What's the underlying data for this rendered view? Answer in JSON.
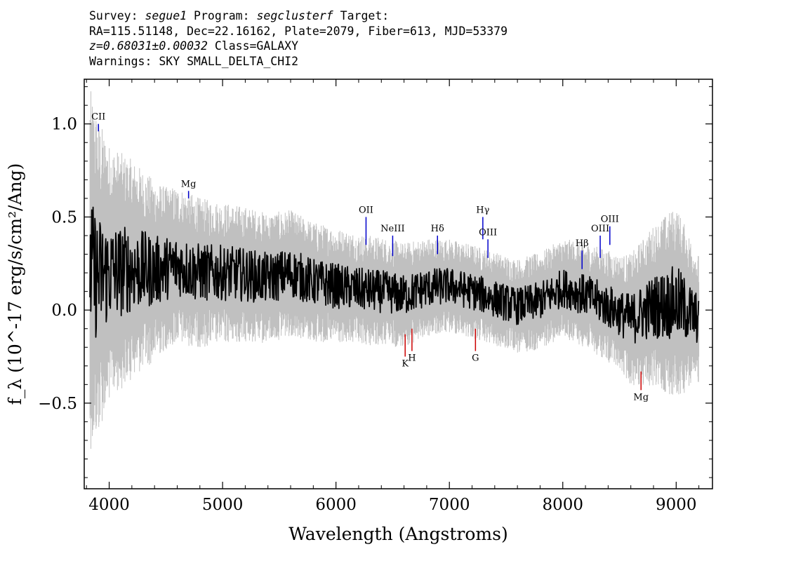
{
  "header": {
    "survey_label": "Survey:",
    "survey": "segue1",
    "program_label": "Program:",
    "program": "segclusterf",
    "target_label": "Target:",
    "line2": "RA=115.51148, Dec=22.16162, Plate=2079, Fiber=613, MJD=53379",
    "redshift": "z=0.68031±0.00032",
    "class": "Class=GALAXY",
    "warnings": "Warnings: SKY SMALL_DELTA_CHI2"
  },
  "chart_data": {
    "type": "line",
    "xlabel": "Wavelength (Angstroms)",
    "ylabel": "f_λ (10^-17 erg/s/cm²/Ang)",
    "xlim": [
      3780,
      9320
    ],
    "ylim": [
      -0.96,
      1.24
    ],
    "x_ticks": [
      4000,
      5000,
      6000,
      7000,
      8000,
      9000
    ],
    "y_ticks": [
      -0.5,
      0.0,
      0.5,
      1.0
    ],
    "y_tick_labels": [
      "−0.5",
      "0.0",
      "0.5",
      "1.0"
    ],
    "series": [
      {
        "role": "flux",
        "color": "#000000",
        "x": [
          3830,
          3900,
          4000,
          4200,
          4400,
          4600,
          4800,
          5000,
          5200,
          5400,
          5600,
          5800,
          6000,
          6200,
          6400,
          6600,
          6800,
          7000,
          7200,
          7400,
          7600,
          7800,
          8000,
          8200,
          8400,
          8600,
          8800,
          9000,
          9200
        ],
        "y": [
          0.22,
          0.18,
          0.2,
          0.22,
          0.21,
          0.24,
          0.2,
          0.2,
          0.19,
          0.17,
          0.2,
          0.15,
          0.13,
          0.11,
          0.1,
          0.08,
          0.12,
          0.13,
          0.1,
          0.06,
          0.02,
          0.05,
          0.12,
          0.08,
          0.02,
          -0.05,
          0.02,
          0.04,
          -0.05
        ]
      },
      {
        "role": "noise",
        "color": "#c0c0c0",
        "x": [
          3830,
          4000,
          4500,
          5000,
          5500,
          6000,
          6500,
          7000,
          7500,
          8000,
          8500,
          9000,
          9200
        ],
        "halfwidth": [
          0.85,
          0.6,
          0.38,
          0.33,
          0.3,
          0.27,
          0.25,
          0.22,
          0.22,
          0.23,
          0.27,
          0.45,
          0.3
        ]
      }
    ],
    "emission_lines": [
      {
        "label": "CII",
        "x": 3905,
        "y_top": 1.0,
        "y_bottom": 0.96
      },
      {
        "label": "Mg",
        "x": 4700,
        "y_top": 0.64,
        "y_bottom": 0.6
      },
      {
        "label": "OII",
        "x": 6265,
        "y_top": 0.5,
        "y_bottom": 0.35
      },
      {
        "label": "NeIII",
        "x": 6500,
        "y_top": 0.4,
        "y_bottom": 0.29
      },
      {
        "label": "Hδ",
        "x": 6895,
        "y_top": 0.4,
        "y_bottom": 0.3
      },
      {
        "label": "Hγ",
        "x": 7295,
        "y_top": 0.5,
        "y_bottom": 0.38
      },
      {
        "label": "OIII",
        "x": 7340,
        "y_top": 0.38,
        "y_bottom": 0.28
      },
      {
        "label": "Hβ",
        "x": 8170,
        "y_top": 0.32,
        "y_bottom": 0.22
      },
      {
        "label": "OIII",
        "x": 8330,
        "y_top": 0.4,
        "y_bottom": 0.28
      },
      {
        "label": "OIII",
        "x": 8415,
        "y_top": 0.45,
        "y_bottom": 0.35
      }
    ],
    "absorption_lines": [
      {
        "label": "K",
        "x": 6610,
        "y_top": -0.13,
        "y_bottom": -0.25
      },
      {
        "label": "H",
        "x": 6670,
        "y_top": -0.1,
        "y_bottom": -0.22
      },
      {
        "label": "G",
        "x": 7230,
        "y_top": -0.1,
        "y_bottom": -0.22
      },
      {
        "label": "Mg",
        "x": 8690,
        "y_top": -0.33,
        "y_bottom": -0.43
      }
    ],
    "line_colors": {
      "emission": "#0000cc",
      "absorption": "#cc0000"
    }
  }
}
